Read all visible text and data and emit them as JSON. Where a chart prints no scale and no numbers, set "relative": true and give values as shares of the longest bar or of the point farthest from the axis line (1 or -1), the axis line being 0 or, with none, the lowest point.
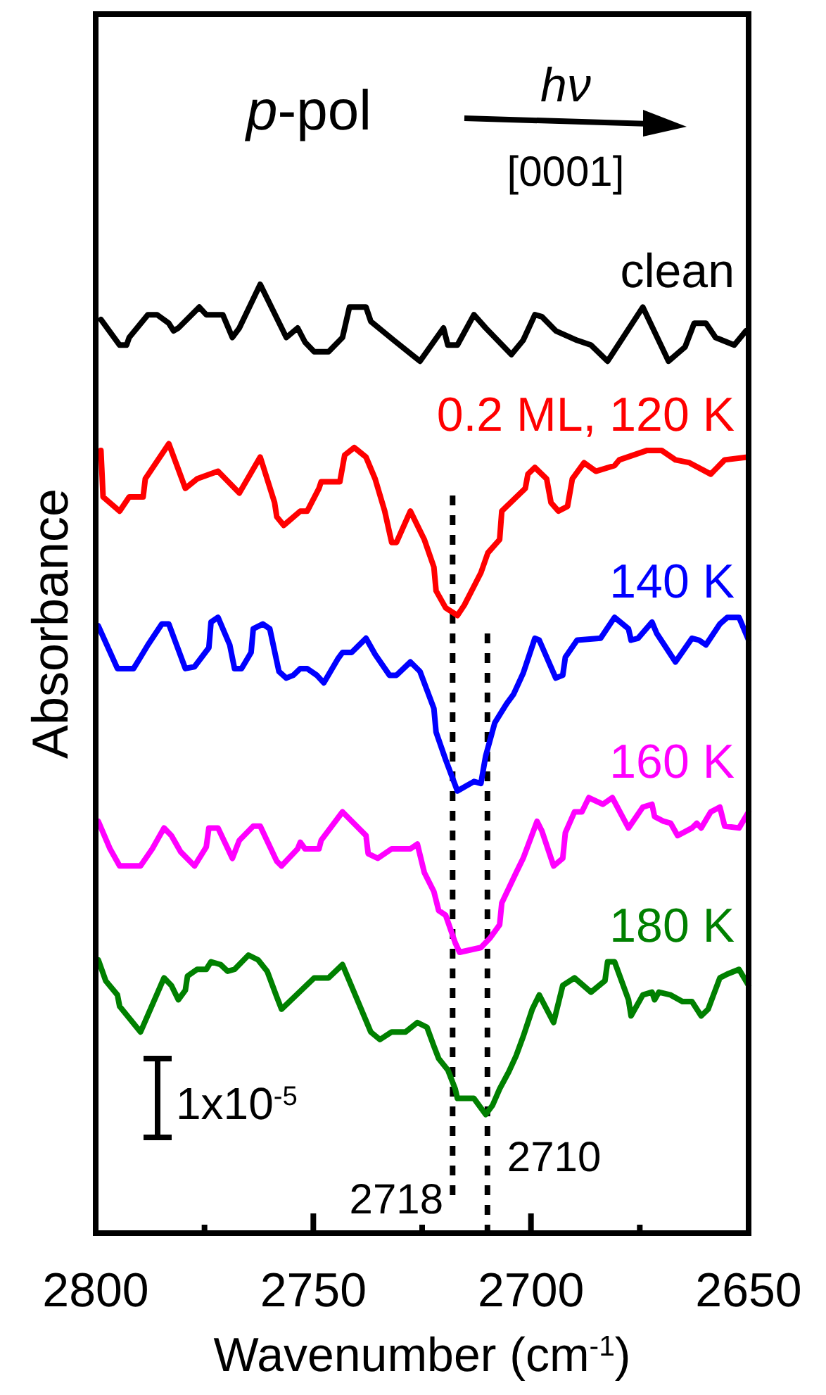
{
  "chart_data": {
    "type": "line",
    "relative": true,
    "xlabel": "Wavenumber (cm$^{-1}$)",
    "ylabel": "Absorbance",
    "xlim": [
      2800,
      2650
    ],
    "xticks": [
      2800,
      {
        "value": 2775,
        "label": null
      },
      2750,
      {
        "value": 2725,
        "label": null
      },
      2700,
      {
        "value": 2675,
        "label": null
      },
      2650
    ],
    "grid": false,
    "tick_labels": "x",
    "line_style": "solid",
    "marker": "none",
    "annotations": [
      "p-pol",
      "hν",
      "[0001]",
      "1x10$^{-5}$"
    ],
    "ref_lines": [
      {
        "axis": "x",
        "value": 2718,
        "label": "2718",
        "line_style": "dotted",
        "color": "#000000"
      },
      {
        "axis": "x",
        "value": 2710,
        "label": "2710",
        "line_style": "dotted",
        "color": "#000000"
      }
    ],
    "series": [
      {
        "name": "clean",
        "color": "#000000",
        "x": [
          2798.8,
          2794.5,
          2792.9,
          2792.3,
          2788.0,
          2785.9,
          2783.2,
          2782.1,
          2781.0,
          2776.2,
          2774.6,
          2770.8,
          2768.6,
          2767.0,
          2762.2,
          2756.2,
          2753.6,
          2751.9,
          2749.8,
          2746.5,
          2743.3,
          2741.7,
          2737.9,
          2736.8,
          2731.5,
          2725.5,
          2720.1,
          2719.1,
          2716.9,
          2713.1,
          2710.4,
          2704.5,
          2701.8,
          2699.1,
          2697.5,
          2694.3,
          2689.4,
          2686.2,
          2682.4,
          2674.3,
          2668.4,
          2664.6,
          2662.5,
          2659.8,
          2657.6,
          2653.3,
          2650.6
        ],
        "values": [
          0.963,
          0.936,
          0.936,
          0.944,
          0.968,
          0.968,
          0.959,
          0.951,
          0.954,
          0.976,
          0.968,
          0.968,
          0.944,
          0.954,
          1.0,
          0.944,
          0.954,
          0.939,
          0.929,
          0.929,
          0.944,
          0.976,
          0.976,
          0.961,
          0.941,
          0.919,
          0.954,
          0.936,
          0.936,
          0.968,
          0.954,
          0.926,
          0.941,
          0.968,
          0.966,
          0.951,
          0.941,
          0.936,
          0.919,
          0.976,
          0.919,
          0.934,
          0.959,
          0.959,
          0.944,
          0.936,
          0.951
        ]
      },
      {
        "name": "0.2 ML, 120 K",
        "color": "#ff0000",
        "x": [
          2798.8,
          2798.3,
          2794.5,
          2792.3,
          2789.1,
          2788.6,
          2783.2,
          2779.4,
          2776.7,
          2771.9,
          2767.0,
          2762.2,
          2758.9,
          2758.4,
          2756.8,
          2753.0,
          2751.4,
          2748.7,
          2748.2,
          2743.9,
          2742.8,
          2740.6,
          2737.9,
          2735.8,
          2733.6,
          2732.0,
          2730.9,
          2727.7,
          2724.5,
          2722.3,
          2721.8,
          2719.6,
          2716.9,
          2715.3,
          2711.5,
          2709.9,
          2707.2,
          2706.7,
          2701.3,
          2700.7,
          2699.1,
          2696.4,
          2695.4,
          2693.7,
          2691.6,
          2690.5,
          2687.8,
          2685.1,
          2680.8,
          2679.7,
          2673.3,
          2670.0,
          2666.8,
          2663.6,
          2658.7,
          2655.5,
          2650.0
        ],
        "values": [
          0.825,
          0.776,
          0.761,
          0.776,
          0.776,
          0.795,
          0.832,
          0.785,
          0.795,
          0.803,
          0.78,
          0.818,
          0.77,
          0.755,
          0.746,
          0.761,
          0.761,
          0.785,
          0.792,
          0.792,
          0.82,
          0.828,
          0.818,
          0.795,
          0.761,
          0.728,
          0.728,
          0.761,
          0.731,
          0.702,
          0.677,
          0.659,
          0.651,
          0.662,
          0.696,
          0.717,
          0.731,
          0.761,
          0.785,
          0.8,
          0.807,
          0.795,
          0.77,
          0.761,
          0.766,
          0.795,
          0.812,
          0.803,
          0.809,
          0.815,
          0.825,
          0.825,
          0.815,
          0.812,
          0.8,
          0.815,
          0.818
        ]
      },
      {
        "name": "140 K",
        "color": "#0000ff",
        "x": [
          2799.4,
          2795.0,
          2791.3,
          2789.7,
          2788.0,
          2784.8,
          2783.2,
          2779.4,
          2777.3,
          2774.0,
          2773.5,
          2771.9,
          2769.2,
          2768.1,
          2766.5,
          2764.3,
          2763.8,
          2761.6,
          2760.0,
          2757.9,
          2756.2,
          2754.6,
          2753.0,
          2751.4,
          2749.2,
          2747.6,
          2744.4,
          2743.3,
          2741.2,
          2737.9,
          2735.8,
          2732.5,
          2730.9,
          2727.7,
          2725.5,
          2722.3,
          2721.8,
          2719.6,
          2716.9,
          2713.1,
          2711.5,
          2710.4,
          2708.3,
          2705.6,
          2704.0,
          2701.8,
          2699.1,
          2698.1,
          2694.3,
          2692.7,
          2692.1,
          2689.4,
          2684.0,
          2680.8,
          2677.6,
          2677.0,
          2675.4,
          2672.2,
          2671.1,
          2666.8,
          2663.0,
          2661.4,
          2659.8,
          2656.6,
          2654.9,
          2652.2,
          2650.0
        ],
        "values": [
          0.64,
          0.595,
          0.595,
          0.607,
          0.62,
          0.642,
          0.642,
          0.595,
          0.597,
          0.617,
          0.644,
          0.649,
          0.62,
          0.595,
          0.595,
          0.612,
          0.637,
          0.642,
          0.637,
          0.592,
          0.585,
          0.588,
          0.595,
          0.595,
          0.588,
          0.58,
          0.605,
          0.612,
          0.612,
          0.627,
          0.61,
          0.588,
          0.588,
          0.602,
          0.592,
          0.553,
          0.528,
          0.499,
          0.466,
          0.476,
          0.474,
          0.503,
          0.538,
          0.558,
          0.568,
          0.59,
          0.627,
          0.625,
          0.585,
          0.588,
          0.607,
          0.625,
          0.627,
          0.649,
          0.637,
          0.625,
          0.627,
          0.644,
          0.632,
          0.602,
          0.627,
          0.625,
          0.62,
          0.642,
          0.649,
          0.649,
          0.625
        ]
      },
      {
        "name": "160 K",
        "color": "#ff00ff",
        "x": [
          2799.4,
          2796.7,
          2794.5,
          2789.7,
          2787.0,
          2784.3,
          2782.6,
          2780.5,
          2777.3,
          2774.6,
          2774.0,
          2771.9,
          2768.6,
          2767.0,
          2763.8,
          2762.2,
          2758.4,
          2757.3,
          2753.6,
          2753.0,
          2751.9,
          2748.7,
          2748.2,
          2743.3,
          2737.9,
          2737.4,
          2735.2,
          2732.0,
          2727.7,
          2726.1,
          2724.5,
          2722.3,
          2721.2,
          2719.6,
          2717.4,
          2716.4,
          2711.5,
          2709.4,
          2707.2,
          2706.7,
          2703.4,
          2701.8,
          2698.6,
          2697.5,
          2694.8,
          2692.7,
          2692.1,
          2690.0,
          2688.3,
          2686.7,
          2683.5,
          2681.3,
          2677.6,
          2674.3,
          2672.2,
          2671.6,
          2669.5,
          2667.9,
          2666.3,
          2663.0,
          2661.9,
          2660.9,
          2658.7,
          2656.6,
          2655.5,
          2652.2,
          2650.0
        ],
        "values": [
          0.434,
          0.405,
          0.387,
          0.387,
          0.405,
          0.427,
          0.419,
          0.402,
          0.387,
          0.407,
          0.427,
          0.427,
          0.395,
          0.414,
          0.429,
          0.429,
          0.392,
          0.387,
          0.405,
          0.412,
          0.405,
          0.405,
          0.414,
          0.444,
          0.419,
          0.4,
          0.395,
          0.405,
          0.405,
          0.41,
          0.38,
          0.36,
          0.34,
          0.335,
          0.306,
          0.296,
          0.301,
          0.311,
          0.325,
          0.348,
          0.38,
          0.395,
          0.434,
          0.424,
          0.387,
          0.395,
          0.422,
          0.444,
          0.444,
          0.459,
          0.452,
          0.459,
          0.427,
          0.449,
          0.452,
          0.439,
          0.434,
          0.432,
          0.419,
          0.427,
          0.432,
          0.427,
          0.444,
          0.449,
          0.429,
          0.427,
          0.444
        ]
      },
      {
        "name": "180 K",
        "color": "#008000",
        "x": [
          2799.4,
          2797.7,
          2795.0,
          2794.5,
          2789.7,
          2784.3,
          2782.6,
          2781.0,
          2779.4,
          2778.9,
          2776.7,
          2774.6,
          2773.5,
          2771.3,
          2769.7,
          2768.1,
          2764.9,
          2762.7,
          2760.6,
          2758.4,
          2757.3,
          2749.8,
          2746.5,
          2743.3,
          2742.2,
          2737.9,
          2736.8,
          2734.7,
          2732.0,
          2728.8,
          2726.1,
          2723.9,
          2722.3,
          2721.2,
          2719.1,
          2717.4,
          2716.9,
          2713.1,
          2710.4,
          2708.8,
          2707.2,
          2705.1,
          2703.4,
          2701.8,
          2699.7,
          2698.1,
          2694.8,
          2692.7,
          2690.0,
          2686.2,
          2683.0,
          2682.4,
          2680.8,
          2677.6,
          2677.0,
          2674.3,
          2672.2,
          2671.6,
          2670.6,
          2667.9,
          2665.2,
          2663.0,
          2660.9,
          2659.3,
          2656.6,
          2654.9,
          2652.2,
          2650.0
        ],
        "values": [
          0.288,
          0.266,
          0.251,
          0.239,
          0.212,
          0.269,
          0.261,
          0.246,
          0.256,
          0.271,
          0.278,
          0.278,
          0.286,
          0.283,
          0.276,
          0.278,
          0.293,
          0.288,
          0.276,
          0.249,
          0.236,
          0.269,
          0.269,
          0.283,
          0.271,
          0.224,
          0.212,
          0.204,
          0.212,
          0.212,
          0.222,
          0.217,
          0.197,
          0.184,
          0.172,
          0.152,
          0.142,
          0.142,
          0.125,
          0.135,
          0.152,
          0.17,
          0.187,
          0.207,
          0.236,
          0.251,
          0.222,
          0.261,
          0.269,
          0.254,
          0.266,
          0.286,
          0.286,
          0.246,
          0.229,
          0.251,
          0.254,
          0.246,
          0.254,
          0.251,
          0.244,
          0.244,
          0.229,
          0.236,
          0.269,
          0.273,
          0.278,
          0.261
        ]
      }
    ]
  }
}
